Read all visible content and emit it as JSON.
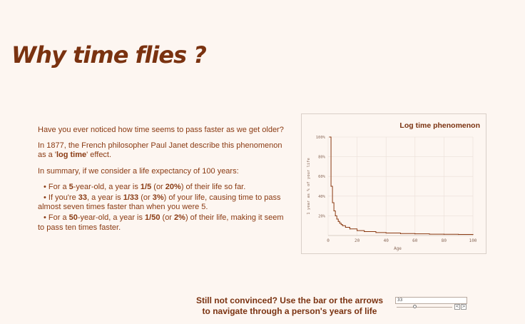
{
  "page": {
    "title": "Why time flies ?"
  },
  "intro": {
    "p1": "Have you ever noticed how time seems to pass faster as we get older?",
    "p2_a": "In 1877, the French philosopher Paul Janet describe this phenomenon as a '",
    "p2_bold": "log time",
    "p2_b": "' effect.",
    "p3": "In summary, if we consider a life expectancy of 100 years:"
  },
  "bullets": [
    {
      "prefix": "• For a ",
      "age": "5",
      "mid1": "-year-old, a year is ",
      "fraction": "1/5",
      "mid2": " (or ",
      "percent": "20%",
      "suffix": ") of their life so far."
    },
    {
      "prefix": "• If you're ",
      "age": "33",
      "mid1": ", a year is ",
      "fraction": "1/33",
      "mid2": " (or ",
      "percent": "3%",
      "suffix": ") of your life, causing time to pass almost seven times faster than when you were 5."
    },
    {
      "prefix": "• For a ",
      "age": "50",
      "mid1": "-year-old, a year is ",
      "fraction": "1/50",
      "mid2": " (or ",
      "percent": "2%",
      "suffix": ") of their life, making it seem to pass ten times faster."
    }
  ],
  "chart_data": {
    "type": "line",
    "title": "Log time phenomenon",
    "xlabel": "Age",
    "ylabel": "1 year as % of your life",
    "xlim": [
      0,
      100
    ],
    "ylim": [
      0,
      100
    ],
    "x_ticks": [
      "0",
      "20",
      "40",
      "60",
      "80",
      "100"
    ],
    "y_ticks": [
      "20%",
      "40%",
      "60%",
      "80%",
      "100%"
    ],
    "grid": true,
    "line_color": "#8a3a12",
    "x": [
      1,
      2,
      3,
      4,
      5,
      6,
      7,
      8,
      9,
      10,
      12,
      15,
      20,
      25,
      33,
      40,
      50,
      60,
      70,
      80,
      90,
      100
    ],
    "y": [
      100,
      50,
      33.3,
      25,
      20,
      16.7,
      14.3,
      12.5,
      11.1,
      10,
      8.3,
      6.7,
      5,
      4,
      3,
      2.5,
      2,
      1.7,
      1.4,
      1.25,
      1.1,
      1
    ]
  },
  "footer": {
    "line1": "Still not convinced? Use the bar or the arrows",
    "line2": "to navigate through a person's years of life"
  },
  "slider": {
    "value": "33",
    "min": 1,
    "max": 100,
    "prev_label": "<",
    "next_label": ">"
  }
}
